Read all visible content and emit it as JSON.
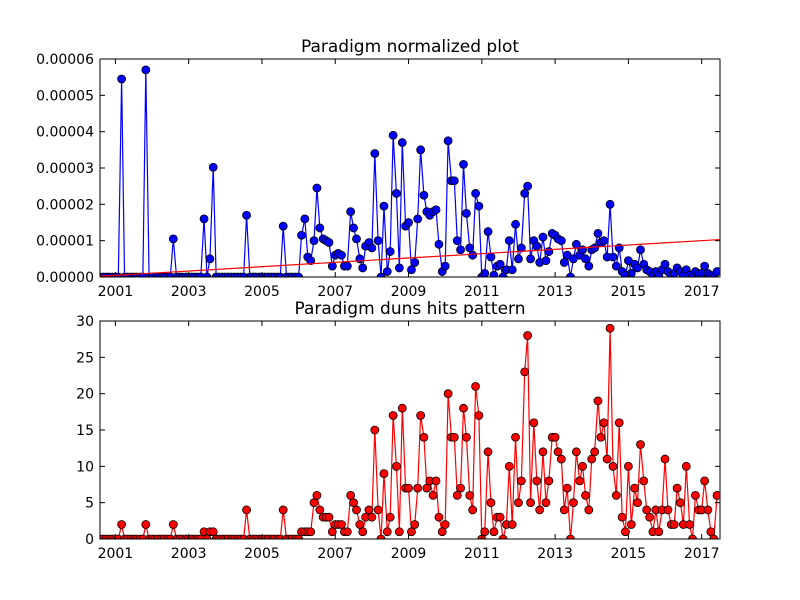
{
  "chart_data": [
    {
      "type": "line",
      "title": "Paradigm normalized plot",
      "x": [
        2000.58,
        2000.67,
        2000.75,
        2000.83,
        2000.92,
        2001,
        2001.08,
        2001.17,
        2001.25,
        2001.33,
        2001.42,
        2001.5,
        2001.58,
        2001.67,
        2001.75,
        2001.83,
        2001.92,
        2002,
        2002.08,
        2002.17,
        2002.25,
        2002.33,
        2002.42,
        2002.5,
        2002.58,
        2002.67,
        2002.75,
        2002.83,
        2002.92,
        2003,
        2003.08,
        2003.17,
        2003.25,
        2003.33,
        2003.42,
        2003.5,
        2003.58,
        2003.67,
        2003.75,
        2003.83,
        2003.92,
        2004,
        2004.08,
        2004.17,
        2004.25,
        2004.33,
        2004.42,
        2004.5,
        2004.58,
        2004.67,
        2004.75,
        2004.83,
        2004.92,
        2005,
        2005.08,
        2005.17,
        2005.25,
        2005.33,
        2005.42,
        2005.5,
        2005.58,
        2005.67,
        2005.75,
        2005.83,
        2005.92,
        2006,
        2006.08,
        2006.17,
        2006.25,
        2006.33,
        2006.42,
        2006.5,
        2006.58,
        2006.67,
        2006.75,
        2006.83,
        2006.92,
        2007,
        2007.08,
        2007.17,
        2007.25,
        2007.33,
        2007.42,
        2007.5,
        2007.58,
        2007.67,
        2007.75,
        2007.83,
        2007.92,
        2008,
        2008.08,
        2008.17,
        2008.25,
        2008.33,
        2008.42,
        2008.5,
        2008.58,
        2008.67,
        2008.75,
        2008.83,
        2008.92,
        2009,
        2009.08,
        2009.17,
        2009.25,
        2009.33,
        2009.42,
        2009.5,
        2009.58,
        2009.67,
        2009.75,
        2009.83,
        2009.92,
        2010,
        2010.08,
        2010.17,
        2010.25,
        2010.33,
        2010.42,
        2010.5,
        2010.58,
        2010.67,
        2010.75,
        2010.83,
        2010.92,
        2011,
        2011.08,
        2011.17,
        2011.25,
        2011.33,
        2011.42,
        2011.5,
        2011.58,
        2011.67,
        2011.75,
        2011.83,
        2011.92,
        2012,
        2012.08,
        2012.17,
        2012.25,
        2012.33,
        2012.42,
        2012.5,
        2012.58,
        2012.67,
        2012.75,
        2012.83,
        2012.92,
        2013,
        2013.08,
        2013.17,
        2013.25,
        2013.33,
        2013.42,
        2013.5,
        2013.58,
        2013.67,
        2013.75,
        2013.83,
        2013.92,
        2014,
        2014.08,
        2014.17,
        2014.25,
        2014.33,
        2014.42,
        2014.5,
        2014.58,
        2014.67,
        2014.75,
        2014.83,
        2014.92,
        2015,
        2015.08,
        2015.17,
        2015.25,
        2015.33,
        2015.42,
        2015.5,
        2015.58,
        2015.67,
        2015.75,
        2015.83,
        2015.92,
        2016,
        2016.08,
        2016.17,
        2016.25,
        2016.33,
        2016.42,
        2016.5,
        2016.58,
        2016.67,
        2016.75,
        2016.83,
        2016.92,
        2017,
        2017.08,
        2017.17,
        2017.25,
        2017.33,
        2017.42
      ],
      "series": [
        {
          "color": "#0000ff",
          "values": [
            0,
            0,
            0,
            0,
            0,
            0,
            0,
            5.45e-05,
            0,
            0,
            0,
            0,
            0,
            0,
            0,
            5.7e-05,
            0,
            0,
            0,
            0,
            0,
            0,
            0,
            0,
            1.05e-05,
            0,
            0,
            0,
            0,
            0,
            0,
            0,
            0,
            0,
            1.6e-05,
            0,
            5e-06,
            3.02e-05,
            0,
            0,
            0,
            0,
            0,
            0,
            0,
            0,
            0,
            0,
            1.7e-05,
            0,
            0,
            0,
            0,
            0,
            0,
            0,
            0,
            0,
            0,
            0,
            1.4e-05,
            0,
            0,
            0,
            0,
            0,
            1.15e-05,
            1.6e-05,
            5.5e-06,
            4.5e-06,
            1e-05,
            2.45e-05,
            1.35e-05,
            1.05e-05,
            1e-05,
            9.5e-06,
            3e-06,
            6e-06,
            6.5e-06,
            6e-06,
            3e-06,
            3e-06,
            1.8e-05,
            1.35e-05,
            1.05e-05,
            5e-06,
            2.5e-06,
            8.5e-06,
            9.5e-06,
            8e-06,
            3.4e-05,
            1e-05,
            0,
            1.95e-05,
            1.5e-06,
            7e-06,
            3.9e-05,
            2.3e-05,
            2.5e-06,
            3.7e-05,
            1.4e-05,
            1.5e-05,
            2e-06,
            4e-06,
            1.6e-05,
            3.5e-05,
            2.25e-05,
            1.8e-05,
            1.7e-05,
            1.8e-05,
            1.85e-05,
            9e-06,
            1.5e-06,
            3e-06,
            3.75e-05,
            2.65e-05,
            2.65e-05,
            1e-05,
            7.5e-06,
            3.1e-05,
            1.75e-05,
            8e-06,
            6e-06,
            2.3e-05,
            1.95e-05,
            0,
            1e-06,
            1.25e-05,
            5.5e-06,
            5e-07,
            3e-06,
            3.5e-06,
            0,
            2e-06,
            1e-05,
            2e-06,
            1.45e-05,
            5e-06,
            8e-06,
            2.3e-05,
            2.5e-05,
            5e-06,
            1e-05,
            8.5e-06,
            4e-06,
            1.1e-05,
            4.5e-06,
            7e-06,
            1.2e-05,
            1.15e-05,
            1.05e-05,
            1e-05,
            4e-06,
            6e-06,
            0,
            5e-06,
            9e-06,
            6e-06,
            7.5e-06,
            5e-06,
            3e-06,
            7.5e-06,
            8e-06,
            1.2e-05,
            9.5e-06,
            1e-05,
            5.5e-06,
            2e-05,
            5.5e-06,
            3e-06,
            8e-06,
            1.5e-06,
            5e-07,
            4.5e-06,
            1e-06,
            3.5e-06,
            2.5e-06,
            7.5e-06,
            3.5e-06,
            2e-06,
            1.5e-06,
            5e-07,
            1.5e-06,
            5e-07,
            2e-06,
            3.5e-06,
            1.5e-06,
            5e-07,
            1e-06,
            2.5e-06,
            1.5e-06,
            5e-07,
            2e-06,
            5e-07,
            0,
            1.5e-06,
            1e-06,
            1e-06,
            3e-06,
            1e-06,
            5e-07,
            0,
            1.5e-06
          ]
        },
        {
          "color": "#ff0000",
          "markers": false,
          "x": [
            2000.58,
            2017.5
          ],
          "values": [
            2e-07,
            1.03e-05
          ]
        }
      ],
      "xlim": [
        2000.58,
        2017.5
      ],
      "xticks": [
        2001,
        2003,
        2005,
        2007,
        2009,
        2011,
        2013,
        2015,
        2017
      ],
      "ylim": [
        0,
        6e-05
      ],
      "yticks": [
        {
          "value": 0,
          "label": "0.00000"
        },
        {
          "value": 1e-05,
          "label": "0.00001"
        },
        {
          "value": 2e-05,
          "label": "0.00002"
        },
        {
          "value": 3e-05,
          "label": "0.00003"
        },
        {
          "value": 4e-05,
          "label": "0.00004"
        },
        {
          "value": 5e-05,
          "label": "0.00005"
        },
        {
          "value": 6e-05,
          "label": "0.00006"
        }
      ]
    },
    {
      "type": "line",
      "title": "Paradigm duns hits pattern",
      "x": [
        2000.58,
        2000.67,
        2000.75,
        2000.83,
        2000.92,
        2001,
        2001.08,
        2001.17,
        2001.25,
        2001.33,
        2001.42,
        2001.5,
        2001.58,
        2001.67,
        2001.75,
        2001.83,
        2001.92,
        2002,
        2002.08,
        2002.17,
        2002.25,
        2002.33,
        2002.42,
        2002.5,
        2002.58,
        2002.67,
        2002.75,
        2002.83,
        2002.92,
        2003,
        2003.08,
        2003.17,
        2003.25,
        2003.33,
        2003.42,
        2003.5,
        2003.58,
        2003.67,
        2003.75,
        2003.83,
        2003.92,
        2004,
        2004.08,
        2004.17,
        2004.25,
        2004.33,
        2004.42,
        2004.5,
        2004.58,
        2004.67,
        2004.75,
        2004.83,
        2004.92,
        2005,
        2005.08,
        2005.17,
        2005.25,
        2005.33,
        2005.42,
        2005.5,
        2005.58,
        2005.67,
        2005.75,
        2005.83,
        2005.92,
        2006,
        2006.08,
        2006.17,
        2006.25,
        2006.33,
        2006.42,
        2006.5,
        2006.58,
        2006.67,
        2006.75,
        2006.83,
        2006.92,
        2007,
        2007.08,
        2007.17,
        2007.25,
        2007.33,
        2007.42,
        2007.5,
        2007.58,
        2007.67,
        2007.75,
        2007.83,
        2007.92,
        2008,
        2008.08,
        2008.17,
        2008.25,
        2008.33,
        2008.42,
        2008.5,
        2008.58,
        2008.67,
        2008.75,
        2008.83,
        2008.92,
        2009,
        2009.08,
        2009.17,
        2009.25,
        2009.33,
        2009.42,
        2009.5,
        2009.58,
        2009.67,
        2009.75,
        2009.83,
        2009.92,
        2010,
        2010.08,
        2010.17,
        2010.25,
        2010.33,
        2010.42,
        2010.5,
        2010.58,
        2010.67,
        2010.75,
        2010.83,
        2010.92,
        2011,
        2011.08,
        2011.17,
        2011.25,
        2011.33,
        2011.42,
        2011.5,
        2011.58,
        2011.67,
        2011.75,
        2011.83,
        2011.92,
        2012,
        2012.08,
        2012.17,
        2012.25,
        2012.33,
        2012.42,
        2012.5,
        2012.58,
        2012.67,
        2012.75,
        2012.83,
        2012.92,
        2013,
        2013.08,
        2013.17,
        2013.25,
        2013.33,
        2013.42,
        2013.5,
        2013.58,
        2013.67,
        2013.75,
        2013.83,
        2013.92,
        2014,
        2014.08,
        2014.17,
        2014.25,
        2014.33,
        2014.42,
        2014.5,
        2014.58,
        2014.67,
        2014.75,
        2014.83,
        2014.92,
        2015,
        2015.08,
        2015.17,
        2015.25,
        2015.33,
        2015.42,
        2015.5,
        2015.58,
        2015.67,
        2015.75,
        2015.83,
        2015.92,
        2016,
        2016.08,
        2016.17,
        2016.25,
        2016.33,
        2016.42,
        2016.5,
        2016.58,
        2016.67,
        2016.75,
        2016.83,
        2016.92,
        2017,
        2017.08,
        2017.17,
        2017.25,
        2017.33,
        2017.42
      ],
      "series": [
        {
          "color": "#ff0000",
          "values": [
            0,
            0,
            0,
            0,
            0,
            0,
            0,
            2,
            0,
            0,
            0,
            0,
            0,
            0,
            0,
            2,
            0,
            0,
            0,
            0,
            0,
            0,
            0,
            0,
            2,
            0,
            0,
            0,
            0,
            0,
            0,
            0,
            0,
            0,
            1,
            0,
            1,
            1,
            0,
            0,
            0,
            0,
            0,
            0,
            0,
            0,
            0,
            0,
            4,
            0,
            0,
            0,
            0,
            0,
            0,
            0,
            0,
            0,
            0,
            0,
            4,
            0,
            0,
            0,
            0,
            0,
            1,
            1,
            1,
            1,
            5,
            6,
            4,
            3,
            3,
            3,
            1,
            2,
            2,
            2,
            1,
            1,
            6,
            5,
            4,
            2,
            1,
            3,
            4,
            3,
            15,
            4,
            0,
            9,
            1,
            3,
            17,
            10,
            1,
            18,
            7,
            7,
            1,
            2,
            7,
            17,
            14,
            7,
            8,
            6,
            8,
            3,
            1,
            2,
            20,
            14,
            14,
            6,
            7,
            18,
            14,
            6,
            4,
            21,
            17,
            0,
            1,
            12,
            5,
            1,
            3,
            3,
            0,
            2,
            10,
            2,
            14,
            5,
            8,
            23,
            28,
            5,
            16,
            8,
            4,
            12,
            5,
            8,
            14,
            14,
            12,
            11,
            4,
            7,
            0,
            5,
            12,
            8,
            10,
            6,
            4,
            11,
            12,
            19,
            14,
            16,
            11,
            29,
            10,
            6,
            16,
            3,
            1,
            10,
            2,
            7,
            5,
            13,
            8,
            4,
            3,
            1,
            4,
            1,
            4,
            11,
            4,
            2,
            2,
            7,
            5,
            2,
            10,
            2,
            0,
            6,
            4,
            4,
            8,
            4,
            1,
            0,
            6
          ]
        }
      ],
      "xlim": [
        2000.58,
        2017.5
      ],
      "xticks": [
        2001,
        2003,
        2005,
        2007,
        2009,
        2011,
        2013,
        2015,
        2017
      ],
      "ylim": [
        0,
        30
      ],
      "yticks": [
        0,
        5,
        10,
        15,
        20,
        25,
        30
      ]
    }
  ]
}
